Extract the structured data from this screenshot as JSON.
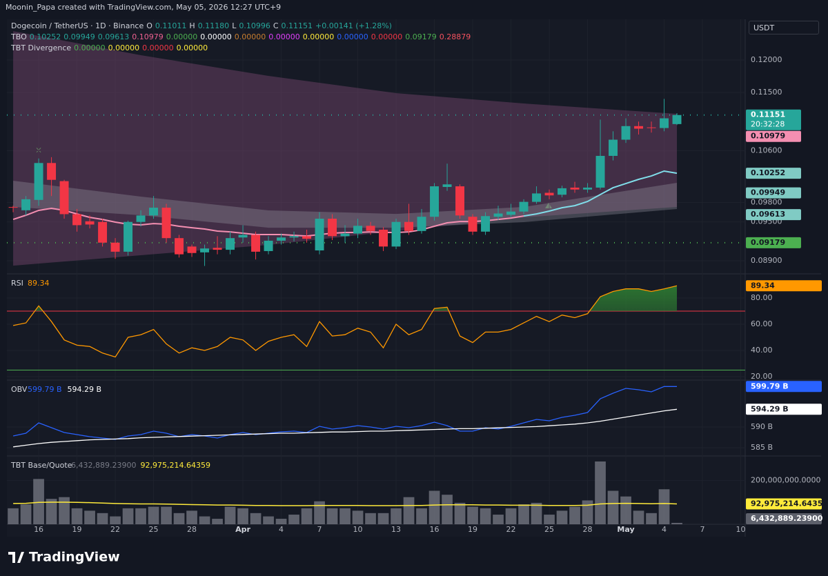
{
  "header": {
    "credit": "Moonin_Papa created with TradingView.com, May 05, 2026 12:27 UTC+9",
    "symbol": "Dogecoin / TetherUS · 1D · Binance",
    "ohlc": [
      {
        "key": "O",
        "text": "0.11011"
      },
      {
        "key": "H",
        "text": "0.11180"
      },
      {
        "key": "L",
        "text": "0.10996"
      },
      {
        "key": "C",
        "text": "0.11151"
      }
    ],
    "change": "+0.00141 (+1.28%)",
    "indicators": [
      {
        "name": "TBO",
        "values": [
          {
            "text": "0.10252",
            "color": "#26a69a"
          },
          {
            "text": "0.09949",
            "color": "#26a69a"
          },
          {
            "text": "0.09613",
            "color": "#26a69a"
          },
          {
            "text": "0.10979",
            "color": "#f06292"
          },
          {
            "text": "0.00000",
            "color": "#4caf50"
          },
          {
            "text": "0.00000",
            "color": "#ffffff"
          },
          {
            "text": "0.00000",
            "color": "#c77d2e"
          },
          {
            "text": "0.00000",
            "color": "#e040fb"
          },
          {
            "text": "0.00000",
            "color": "#ffeb3b"
          },
          {
            "text": "0.00000",
            "color": "#2962ff"
          },
          {
            "text": "0.00000",
            "color": "#f23645"
          },
          {
            "text": "0.09179",
            "color": "#4caf50"
          },
          {
            "text": "0.28879",
            "color": "#f7525f"
          }
        ]
      },
      {
        "name": "TBT Divergence",
        "values": [
          {
            "text": "0.00000",
            "color": "#4caf50"
          },
          {
            "text": "0.00000",
            "color": "#ffeb3b"
          },
          {
            "text": "0.00000",
            "color": "#f23645"
          },
          {
            "text": "0.00000",
            "color": "#ffeb3b"
          }
        ]
      }
    ],
    "currency": "USDT"
  },
  "logo": "TradingView",
  "chart_data": [
    {
      "type": "candlestick",
      "up_color": "#26a69a",
      "down_color": "#f23645",
      "open": [
        0.0973,
        0.0968,
        0.0984,
        0.1041,
        0.1013,
        0.0962,
        0.0951,
        0.095,
        0.0918,
        0.0904,
        0.095,
        0.096,
        0.0972,
        0.0925,
        0.0912,
        0.0903,
        0.091,
        0.0907,
        0.0926,
        0.093,
        0.0905,
        0.0921,
        0.0926,
        0.0928,
        0.0906,
        0.0955,
        0.0928,
        0.0932,
        0.0944,
        0.0938,
        0.0912,
        0.095,
        0.0936,
        0.0958,
        0.1004,
        0.1005,
        0.0958,
        0.0935,
        0.0958,
        0.0961,
        0.0966,
        0.0981,
        0.0995,
        0.0992,
        0.1003,
        0.1,
        0.1003,
        0.1052,
        0.1077,
        0.1098,
        0.1096,
        0.1095,
        0.11011
      ],
      "high": [
        0.0975,
        0.099,
        0.1048,
        0.105,
        0.1015,
        0.097,
        0.096,
        0.0955,
        0.0925,
        0.0952,
        0.0968,
        0.099,
        0.0978,
        0.093,
        0.0915,
        0.0915,
        0.0928,
        0.0935,
        0.0945,
        0.0935,
        0.0928,
        0.0932,
        0.0935,
        0.0938,
        0.0965,
        0.0962,
        0.0945,
        0.0955,
        0.095,
        0.0942,
        0.0955,
        0.0978,
        0.097,
        0.101,
        0.104,
        0.1008,
        0.0962,
        0.0965,
        0.0975,
        0.0978,
        0.0985,
        0.1005,
        0.1,
        0.1006,
        0.1012,
        0.101,
        0.1108,
        0.109,
        0.111,
        0.1105,
        0.1105,
        0.114,
        0.1118
      ],
      "low": [
        0.0965,
        0.096,
        0.0975,
        0.099,
        0.0955,
        0.0935,
        0.094,
        0.0912,
        0.0893,
        0.0898,
        0.0943,
        0.0955,
        0.0918,
        0.0895,
        0.0896,
        0.0882,
        0.09,
        0.09,
        0.0918,
        0.0892,
        0.09,
        0.0915,
        0.092,
        0.0918,
        0.09,
        0.0922,
        0.0918,
        0.0925,
        0.093,
        0.0905,
        0.0908,
        0.093,
        0.0932,
        0.0952,
        0.0998,
        0.0955,
        0.093,
        0.093,
        0.0953,
        0.0958,
        0.0962,
        0.0978,
        0.0985,
        0.0988,
        0.0995,
        0.0995,
        0.1,
        0.1045,
        0.1072,
        0.1085,
        0.1088,
        0.109,
        0.10996
      ],
      "close": [
        0.0972,
        0.0985,
        0.1041,
        0.1015,
        0.0962,
        0.0945,
        0.0946,
        0.0918,
        0.0904,
        0.095,
        0.096,
        0.0972,
        0.0925,
        0.09,
        0.0902,
        0.0909,
        0.0907,
        0.0925,
        0.093,
        0.0904,
        0.0921,
        0.0926,
        0.0928,
        0.0924,
        0.0955,
        0.0928,
        0.0932,
        0.0944,
        0.0936,
        0.0912,
        0.095,
        0.0936,
        0.0958,
        0.1005,
        0.1008,
        0.096,
        0.0935,
        0.0959,
        0.0963,
        0.0966,
        0.0981,
        0.0994,
        0.0991,
        0.1002,
        0.1,
        0.1003,
        0.1052,
        0.1077,
        0.1098,
        0.1094,
        0.1095,
        0.111,
        0.11151
      ],
      "xlim": [
        -0.49,
        57.35
      ],
      "xticks": [
        {
          "value": 2,
          "label": "16"
        },
        {
          "value": 5,
          "label": "19"
        },
        {
          "value": 8,
          "label": "22"
        },
        {
          "value": 11,
          "label": "25"
        },
        {
          "value": 14,
          "label": "28"
        },
        {
          "value": 18,
          "label": "Apr"
        },
        {
          "value": 21,
          "label": "4"
        },
        {
          "value": 24,
          "label": "7"
        },
        {
          "value": 27,
          "label": "10"
        },
        {
          "value": 30,
          "label": "13"
        },
        {
          "value": 33,
          "label": "16"
        },
        {
          "value": 36,
          "label": "19"
        },
        {
          "value": 39,
          "label": "22"
        },
        {
          "value": 42,
          "label": "25"
        },
        {
          "value": 45,
          "label": "28"
        },
        {
          "value": 48,
          "label": "May"
        },
        {
          "value": 51,
          "label": "4"
        },
        {
          "value": 54,
          "label": "7"
        },
        {
          "value": 57,
          "label": "10"
        }
      ],
      "ylim": [
        0.08698,
        0.12629
      ],
      "yticks": [
        {
          "value": 0.12,
          "label": "0.12000"
        },
        {
          "value": 0.115,
          "label": "0.11500"
        },
        {
          "value": 0.106,
          "label": "0.10600"
        },
        {
          "value": 0.098,
          "label": "0.09800"
        },
        {
          "value": 0.095,
          "label": "0.09500"
        },
        {
          "value": 0.089,
          "label": "0.08900"
        }
      ],
      "cloud": [
        {
          "color": "rgba(120,70,110,0.45)",
          "x": [
            0,
            10,
            20,
            30,
            40,
            52
          ],
          "upper": [
            0.12447,
            0.12075,
            0.11755,
            0.11489,
            0.11329,
            0.11169
          ],
          "lower": [
            0.08825,
            0.08985,
            0.09145,
            0.09358,
            0.09571,
            0.09731
          ]
        },
        {
          "color": "rgba(150,150,160,0.35)",
          "x": [
            0,
            10,
            20,
            30,
            40,
            52
          ],
          "upper": [
            0.10136,
            0.09891,
            0.09678,
            0.09624,
            0.09731,
            0.10104
          ],
          "lower": [
            0.09731,
            0.09603,
            0.09411,
            0.09411,
            0.09497,
            0.09699
          ]
        }
      ],
      "series": [
        {
          "color": "#f48fb1",
          "values": [
            0.09539,
            0.09603,
            0.09678,
            0.0971,
            0.09678,
            0.09624,
            0.09571,
            0.09539,
            0.09497,
            0.09465,
            0.09454,
            0.09475,
            0.09465,
            0.09433,
            0.09411,
            0.0939,
            0.09358,
            0.09347,
            0.09326,
            0.09305,
            0.09305,
            0.09305,
            0.09294,
            0.09283,
            0.09305,
            0.09326,
            0.09337,
            0.09337,
            0.09347,
            0.09337,
            0.09337,
            0.09347,
            0.09379,
            0.09433,
            0.09486,
            0.09507,
            0.09507,
            0.09518,
            0.09539,
            0.0956,
            0.09592,
            null,
            null,
            null,
            null,
            null,
            null,
            null,
            null,
            null,
            null,
            null,
            null
          ]
        },
        {
          "color": "#80deea",
          "values": [
            null,
            null,
            null,
            null,
            null,
            null,
            null,
            null,
            null,
            null,
            null,
            null,
            null,
            null,
            null,
            null,
            null,
            null,
            null,
            null,
            null,
            null,
            null,
            null,
            null,
            null,
            null,
            null,
            null,
            null,
            null,
            null,
            null,
            null,
            null,
            null,
            null,
            null,
            null,
            null,
            0.09592,
            0.09624,
            0.09667,
            0.0972,
            0.09752,
            0.09816,
            0.09923,
            0.10029,
            0.10093,
            0.10157,
            0.1021,
            0.10285,
            0.10252
          ]
        }
      ],
      "price_labels": [
        {
          "value": 0.11151,
          "label": "0.11151",
          "countdown": "20:32:28",
          "color": "#26a69a",
          "text_color": "#ffffff",
          "line": "#26a69a"
        },
        {
          "value": 0.10979,
          "label": "0.10979",
          "color": "#f48fb1",
          "text_color": "#131722"
        },
        {
          "value": 0.10252,
          "label": "0.10252",
          "color": "#80cbc4",
          "text_color": "#131722"
        },
        {
          "value": 0.09949,
          "label": "0.09949",
          "color": "#80cbc4",
          "text_color": "#131722"
        },
        {
          "value": 0.09613,
          "label": "0.09613",
          "color": "#80cbc4",
          "text_color": "#131722"
        },
        {
          "value": 0.09179,
          "label": "0.09179",
          "color": "#4caf50",
          "text_color": "#131722",
          "line": "#4caf50"
        }
      ]
    },
    {
      "type": "line",
      "title": "RSI",
      "ylim": [
        17.9,
        97.9
      ],
      "yticks": [
        {
          "value": 80,
          "label": "80.00"
        },
        {
          "value": 60,
          "label": "60.00"
        },
        {
          "value": 40,
          "label": "40.00"
        },
        {
          "value": 20,
          "label": "20.00"
        }
      ],
      "levels": [
        {
          "value": 70,
          "color": "#f23645"
        },
        {
          "value": 25,
          "color": "#4caf50"
        }
      ],
      "fill_color": "#2e7d32",
      "series": [
        {
          "color": "#ff9800",
          "label_color": "#ff9800",
          "values": [
            59,
            61,
            74,
            62,
            48,
            44,
            43,
            38,
            35,
            50,
            52,
            56,
            45,
            38,
            42,
            40,
            43,
            50,
            48,
            40,
            47,
            50,
            52,
            43,
            62,
            51,
            52,
            57,
            54,
            42,
            60,
            52,
            56,
            72,
            73,
            51,
            46,
            54,
            54,
            56,
            61,
            66,
            62,
            67,
            65,
            68,
            81,
            85,
            87,
            87,
            85,
            87,
            89.34
          ]
        }
      ]
    },
    {
      "type": "line",
      "title": "OBV",
      "ylim": [
        583.17,
        601.17
      ],
      "yticks": [
        {
          "value": 590,
          "label": "590 B"
        },
        {
          "value": 585,
          "label": "585 B"
        }
      ],
      "series": [
        {
          "color": "#2962ff",
          "label_color": "#2962ff",
          "text_color": "#ffffff",
          "last_label": "599.79 B",
          "values": [
            587.83,
            588.5,
            591,
            589.83,
            588.67,
            588.17,
            587.67,
            587.33,
            587,
            587.83,
            588.17,
            589,
            588.5,
            587.67,
            588.17,
            587.83,
            587.33,
            588.17,
            588.67,
            588.17,
            588.5,
            588.83,
            589,
            588.67,
            590.17,
            589.5,
            589.83,
            590.33,
            590,
            589.5,
            590.17,
            589.83,
            590.33,
            591.17,
            590.33,
            589,
            589,
            589.83,
            589.5,
            590.17,
            591,
            591.83,
            591.5,
            592.33,
            592.83,
            593.5,
            596.83,
            598.17,
            599.33,
            599,
            598.5,
            599.79,
            599.79
          ]
        },
        {
          "color": "#ffffff",
          "label_color": "#ffffff",
          "text_color": "#131722",
          "last_label": "594.29 B",
          "values": [
            585.2,
            585.6,
            586,
            586.3,
            586.5,
            586.7,
            586.9,
            587,
            587.1,
            587.2,
            587.4,
            587.5,
            587.6,
            587.7,
            587.8,
            587.9,
            588,
            588.1,
            588.2,
            588.3,
            588.4,
            588.5,
            588.5,
            588.6,
            588.7,
            588.8,
            588.8,
            588.9,
            589,
            589,
            589.1,
            589.2,
            589.3,
            589.4,
            589.5,
            589.6,
            589.6,
            589.7,
            589.8,
            589.9,
            590,
            590.1,
            590.3,
            590.5,
            590.7,
            591,
            591.4,
            591.9,
            592.4,
            592.9,
            593.4,
            593.9,
            594.29
          ]
        }
      ]
    },
    {
      "type": "bar",
      "title": "TBT Base/Quote",
      "color": "#787b86",
      "ylim": [
        0,
        309000000
      ],
      "yticks": [
        {
          "value": 200000000,
          "label": "200,000,000.0000"
        }
      ],
      "values": [
        73000000,
        91000000,
        207000000,
        116000000,
        124000000,
        73000000,
        62000000,
        51000000,
        36000000,
        73000000,
        73000000,
        80000000,
        80000000,
        51000000,
        62000000,
        36000000,
        25000000,
        80000000,
        73000000,
        51000000,
        36000000,
        25000000,
        44000000,
        73000000,
        105000000,
        73000000,
        73000000,
        62000000,
        51000000,
        51000000,
        73000000,
        124000000,
        73000000,
        153000000,
        135000000,
        98000000,
        80000000,
        73000000,
        44000000,
        73000000,
        91000000,
        98000000,
        44000000,
        62000000,
        80000000,
        109000000,
        287000000,
        153000000,
        127000000,
        62000000,
        51000000,
        160000000,
        6432889.239
      ],
      "last_label": "6,432,889.23900",
      "label_color": "#5d606b",
      "series": [
        {
          "color": "#ffeb3b",
          "label_color": "#ffeb3b",
          "last_label": "92,975,214.64359",
          "values": [
            95000000,
            96000000,
            100000000,
            101000000,
            101000000,
            100000000,
            99000000,
            97000000,
            95000000,
            94000000,
            93000000,
            93000000,
            92000000,
            91000000,
            90000000,
            89000000,
            88000000,
            88000000,
            87000000,
            86000000,
            86000000,
            85000000,
            85000000,
            85000000,
            86000000,
            86000000,
            86000000,
            86000000,
            85000000,
            85000000,
            85000000,
            86000000,
            86000000,
            88000000,
            89000000,
            89000000,
            89000000,
            88000000,
            88000000,
            87000000,
            87000000,
            87000000,
            86000000,
            86000000,
            86000000,
            87000000,
            93000000,
            95000000,
            96000000,
            95000000,
            94000000,
            95000000,
            92975214.64359
          ]
        }
      ]
    }
  ]
}
